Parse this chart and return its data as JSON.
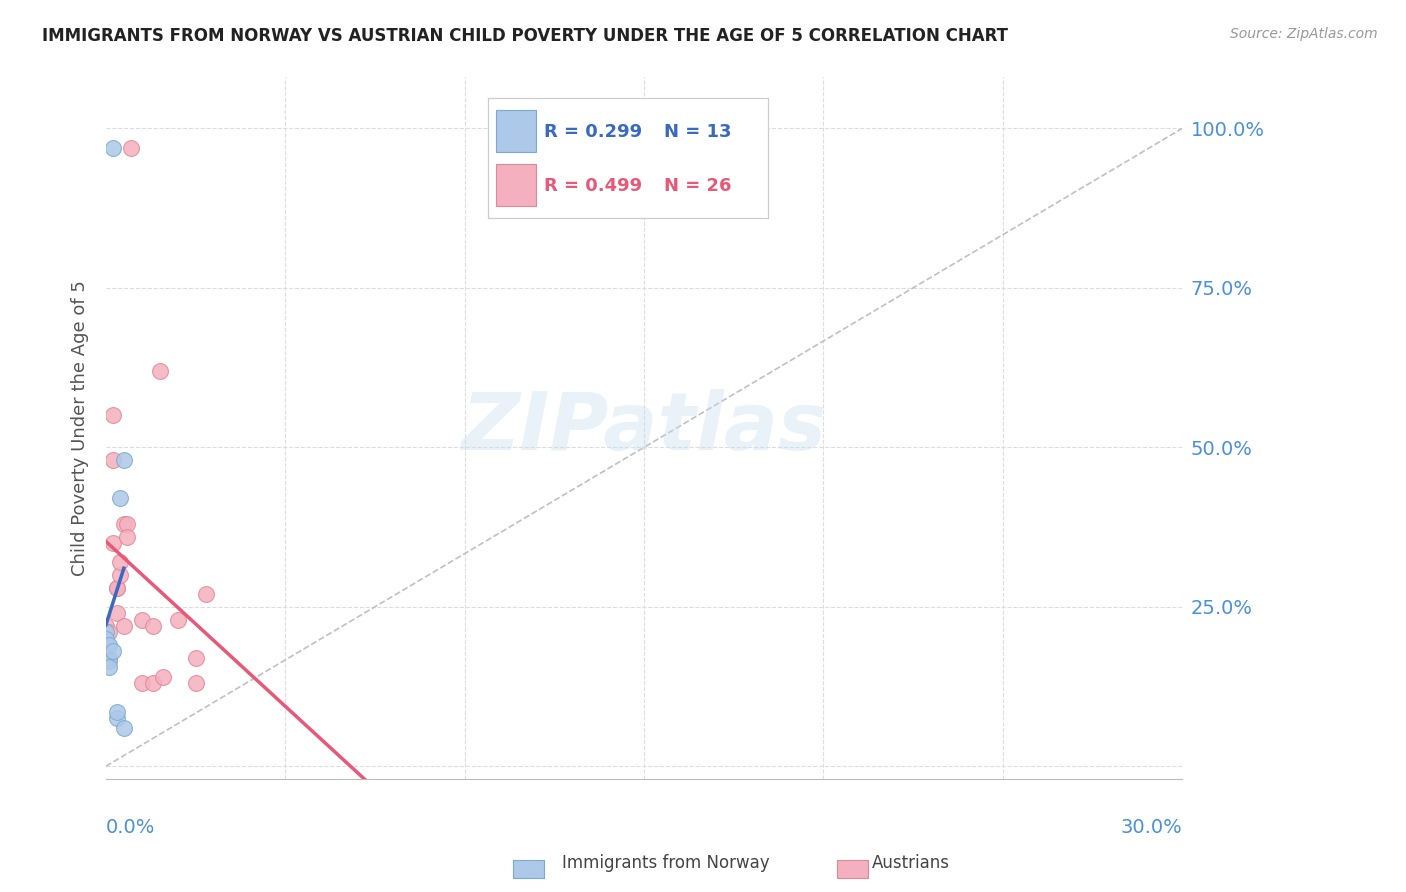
{
  "title_text": "IMMIGRANTS FROM NORWAY VS AUSTRIAN CHILD POVERTY UNDER THE AGE OF 5 CORRELATION CHART",
  "source": "Source: ZipAtlas.com",
  "ylabel": "Child Poverty Under the Age of 5",
  "xlim": [
    0.0,
    0.3
  ],
  "ylim": [
    -0.02,
    1.08
  ],
  "legend_blue_r": "R = 0.299",
  "legend_blue_n": "N = 13",
  "legend_pink_r": "R = 0.499",
  "legend_pink_n": "N = 26",
  "legend_label_blue": "Immigrants from Norway",
  "legend_label_pink": "Austrians",
  "norway_x": [
    0.0,
    0.0,
    0.0,
    0.001,
    0.001,
    0.001,
    0.002,
    0.002,
    0.003,
    0.004,
    0.005,
    0.005,
    0.003
  ],
  "norway_y": [
    0.21,
    0.2,
    0.17,
    0.19,
    0.165,
    0.155,
    0.18,
    0.97,
    0.075,
    0.42,
    0.06,
    0.48,
    0.085
  ],
  "austria_x": [
    0.0,
    0.001,
    0.001,
    0.002,
    0.002,
    0.002,
    0.003,
    0.003,
    0.003,
    0.004,
    0.004,
    0.005,
    0.005,
    0.006,
    0.006,
    0.007,
    0.01,
    0.01,
    0.013,
    0.013,
    0.015,
    0.016,
    0.02,
    0.025,
    0.025,
    0.028
  ],
  "austria_y": [
    0.22,
    0.21,
    0.17,
    0.55,
    0.48,
    0.35,
    0.28,
    0.28,
    0.24,
    0.3,
    0.32,
    0.38,
    0.22,
    0.38,
    0.36,
    0.97,
    0.23,
    0.13,
    0.22,
    0.13,
    0.62,
    0.14,
    0.23,
    0.17,
    0.13,
    0.27
  ],
  "watermark": "ZIPatlas",
  "blue_scatter_color": "#adc8e8",
  "pink_scatter_color": "#f4b0be",
  "blue_scatter_edge": "#7aaad0",
  "pink_scatter_edge": "#e08898",
  "trend_blue_color": "#3a6abf",
  "trend_pink_color": "#e85878",
  "grid_color": "#dddddd",
  "axis_label_color": "#4a90d9",
  "title_color": "#222222",
  "background_color": "#ffffff"
}
